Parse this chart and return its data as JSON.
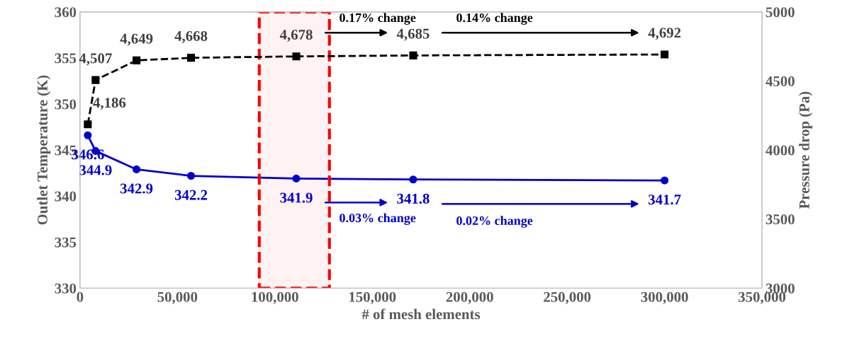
{
  "chart_data": {
    "type": "line",
    "xlabel": "# of mesh elements",
    "ylabel": "Outlet Temperature (K)",
    "y2label": "Pressure drop (Pa)",
    "x": [
      4000,
      8000,
      29000,
      57000,
      111000,
      171000,
      300000
    ],
    "series": [
      {
        "axis": "y2",
        "color": "#000000",
        "marker": "square",
        "line_style": "dashed",
        "values": [
          4186,
          4507,
          4649,
          4668,
          4678,
          4685,
          4692
        ],
        "value_labels": [
          "4,186",
          "4,507",
          "4,649",
          "4,668",
          "4,678",
          "4,685",
          "4,692"
        ]
      },
      {
        "axis": "y",
        "color": "#0000cc",
        "marker": "circle",
        "line_style": "solid",
        "values": [
          346.6,
          344.9,
          342.9,
          342.2,
          341.9,
          341.8,
          341.7
        ],
        "value_labels": [
          "346.6",
          "344.9",
          "342.9",
          "342.2",
          "341.9",
          "341.8",
          "341.7"
        ]
      }
    ],
    "xlim": [
      0,
      350000
    ],
    "xticks": [
      0,
      {
        "value": 50000,
        "label": "50,000"
      },
      {
        "value": 100000,
        "label": "100,000"
      },
      {
        "value": 150000,
        "label": "150,000"
      },
      {
        "value": 200000,
        "label": "200,000"
      },
      {
        "value": 250000,
        "label": "250,000"
      },
      {
        "value": 300000,
        "label": "300,000"
      },
      {
        "value": 350000,
        "label": "350,000"
      }
    ],
    "ylim": [
      330,
      360
    ],
    "yticks": [
      330,
      335,
      340,
      345,
      350,
      355,
      360
    ],
    "y2lim": [
      3000,
      5000
    ],
    "y2ticks": [
      3000,
      3500,
      4000,
      4500,
      5000
    ],
    "bands": [
      {
        "axis": "x",
        "from": 92000,
        "to": 128000,
        "color": "#ff0000"
      }
    ],
    "annotations": [
      "0.17% change",
      "0.14% change",
      "0.03% change",
      "0.02% change"
    ],
    "grid": false,
    "legend": false
  }
}
